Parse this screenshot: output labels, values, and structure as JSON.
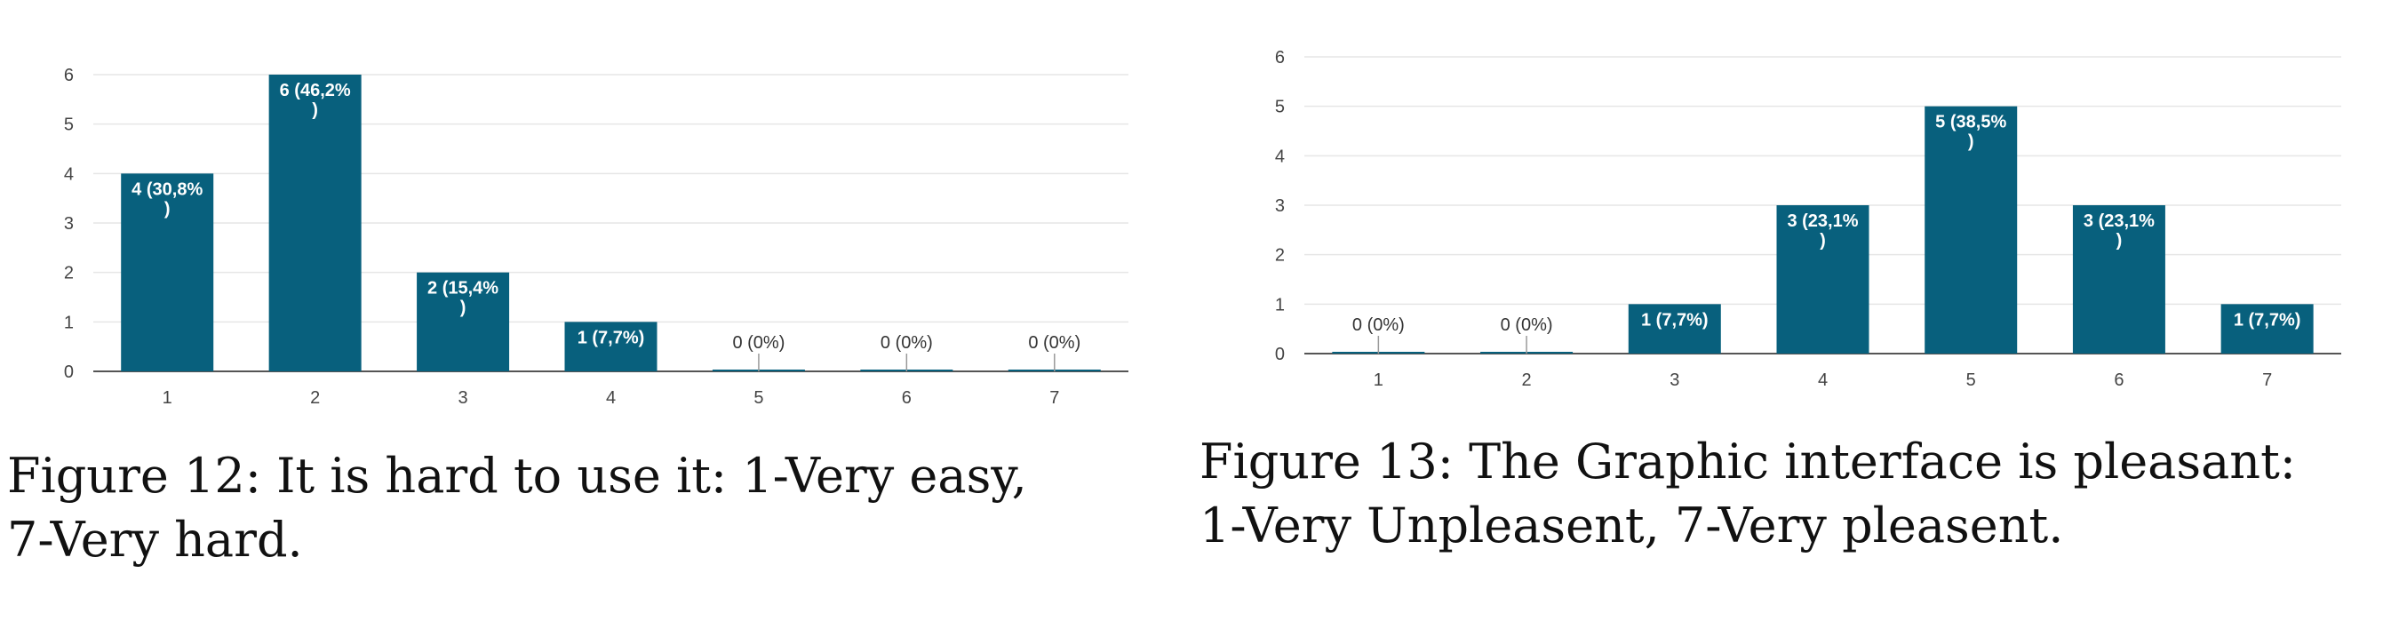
{
  "colors": {
    "bar": "#08607d",
    "grid": "#e6e6e6",
    "axis": "#555555",
    "label_on_bar": "#ffffff",
    "label_off_bar": "#333333"
  },
  "figures": [
    {
      "caption": "Figure 12:  It is hard to use it:  1-Very easy,\n7-Very hard."
    },
    {
      "caption": "Figure 13:  The Graphic interface is pleasant:\n1-Very Unpleasent, 7-Very pleasent."
    }
  ],
  "chart_data": [
    {
      "type": "bar",
      "categories": [
        "1",
        "2",
        "3",
        "4",
        "5",
        "6",
        "7"
      ],
      "values": [
        4,
        6,
        2,
        1,
        0,
        0,
        0
      ],
      "data_labels": [
        [
          "4 (30,8%",
          ")"
        ],
        [
          "6 (46,2%",
          ")"
        ],
        [
          "2 (15,4%",
          ")"
        ],
        [
          "1 (7,7%)"
        ],
        [
          "0 (0%)"
        ],
        [
          "0 (0%)"
        ],
        [
          "0 (0%)"
        ]
      ],
      "yticks": [
        "0",
        "1",
        "2",
        "3",
        "4",
        "5",
        "6"
      ],
      "ylim": [
        0,
        6
      ],
      "grid": true
    },
    {
      "type": "bar",
      "categories": [
        "1",
        "2",
        "3",
        "4",
        "5",
        "6",
        "7"
      ],
      "values": [
        0,
        0,
        1,
        3,
        5,
        3,
        1
      ],
      "data_labels": [
        [
          "0 (0%)"
        ],
        [
          "0 (0%)"
        ],
        [
          "1 (7,7%)"
        ],
        [
          "3 (23,1%",
          ")"
        ],
        [
          "5 (38,5%",
          ")"
        ],
        [
          "3 (23,1%",
          ")"
        ],
        [
          "1 (7,7%)"
        ]
      ],
      "yticks": [
        "0",
        "1",
        "2",
        "3",
        "4",
        "5",
        "6"
      ],
      "ylim": [
        0,
        6
      ],
      "grid": true
    }
  ]
}
